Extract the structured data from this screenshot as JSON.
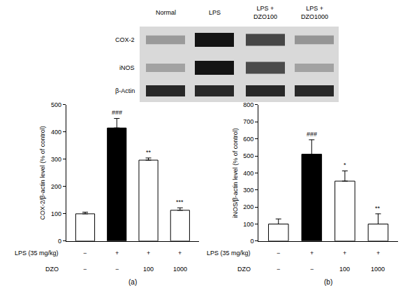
{
  "blot": {
    "lanes": [
      "Normal",
      "LPS",
      "LPS + DZO100",
      "LPS + DZO1000"
    ],
    "rows": [
      "COX-2",
      "iNOS",
      "β-Actin"
    ]
  },
  "chart_data": [
    {
      "type": "bar",
      "panel_label": "(a)",
      "y_label": "COX-2/β-actin level (% of control)",
      "categories": [
        null,
        null,
        null,
        null
      ],
      "values": [
        100,
        415,
        297,
        113
      ],
      "errors": [
        6,
        35,
        8,
        9
      ],
      "significance": [
        null,
        "###",
        "**",
        "***"
      ],
      "colors": [
        "#ffffff",
        "#000000",
        "#ffffff",
        "#ffffff"
      ],
      "ylim": [
        0,
        500
      ],
      "yticks": [
        0,
        100,
        200,
        300,
        400,
        500
      ],
      "grid": false,
      "treatments": [
        {
          "label": "LPS (35 mg/kg)",
          "values": [
            "−",
            "+",
            "+",
            "+"
          ]
        },
        {
          "label": "DZO",
          "values": [
            "−",
            "−",
            "100",
            "1000"
          ]
        }
      ]
    },
    {
      "type": "bar",
      "panel_label": "(b)",
      "y_label": "iNOS/β-actin level (% of control)",
      "categories": [
        null,
        null,
        null,
        null
      ],
      "values": [
        100,
        510,
        352,
        100
      ],
      "errors": [
        30,
        85,
        60,
        60
      ],
      "significance": [
        null,
        "###",
        "*",
        "**"
      ],
      "colors": [
        "#ffffff",
        "#000000",
        "#ffffff",
        "#ffffff"
      ],
      "ylim": [
        0,
        800
      ],
      "yticks": [
        0,
        100,
        200,
        300,
        400,
        500,
        600,
        700,
        800
      ],
      "grid": false,
      "treatments": [
        {
          "label": "LPS (35 mg/kg)",
          "values": [
            "−",
            "+",
            "+",
            "+"
          ]
        },
        {
          "label": "DZO",
          "values": [
            "−",
            "−",
            "100",
            "1000"
          ]
        }
      ]
    }
  ]
}
